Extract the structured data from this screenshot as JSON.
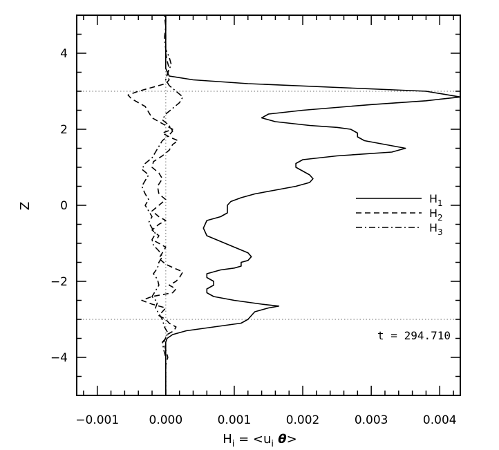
{
  "chart_data": {
    "type": "line",
    "xlabel_parts": {
      "base": "H",
      "sub": "i",
      "mid": " = <u",
      "sub2": "i",
      "theta": " θ",
      "end": ">"
    },
    "ylabel": "Z",
    "xlim": [
      -0.0013,
      0.0043
    ],
    "ylim": [
      -5,
      5
    ],
    "x_ticks": [
      -0.001,
      0.0,
      0.001,
      0.002,
      0.003,
      0.004
    ],
    "x_tick_labels": [
      "−0.001",
      "0.000",
      "0.001",
      "0.002",
      "0.003",
      "0.004"
    ],
    "y_ticks": [
      -4,
      -2,
      0,
      2,
      4
    ],
    "y_tick_labels": [
      "−4",
      "−2",
      "0",
      "2",
      "4"
    ],
    "reference_lines": {
      "z": [
        3,
        -3
      ],
      "x": [
        0
      ]
    },
    "annotation": "t = 294.710",
    "legend_position": "right",
    "series": [
      {
        "name": "H",
        "sub": "1",
        "style": "solid",
        "points": [
          [
            0.0,
            -5
          ],
          [
            0.0,
            -4.0
          ],
          [
            0.0,
            -3.6
          ],
          [
            2e-05,
            -3.5
          ],
          [
            0.0001,
            -3.4
          ],
          [
            0.0003,
            -3.3
          ],
          [
            0.0007,
            -3.2
          ],
          [
            0.0011,
            -3.1
          ],
          [
            0.0012,
            -3.0
          ],
          [
            0.00125,
            -2.9
          ],
          [
            0.0013,
            -2.8
          ],
          [
            0.0015,
            -2.7
          ],
          [
            0.00165,
            -2.65
          ],
          [
            0.0014,
            -2.6
          ],
          [
            0.001,
            -2.5
          ],
          [
            0.0007,
            -2.4
          ],
          [
            0.0006,
            -2.3
          ],
          [
            0.0006,
            -2.2
          ],
          [
            0.0007,
            -2.1
          ],
          [
            0.0007,
            -2.0
          ],
          [
            0.0006,
            -1.9
          ],
          [
            0.0006,
            -1.8
          ],
          [
            0.0008,
            -1.7
          ],
          [
            0.001,
            -1.65
          ],
          [
            0.0011,
            -1.6
          ],
          [
            0.0011,
            -1.5
          ],
          [
            0.0012,
            -1.45
          ],
          [
            0.00125,
            -1.35
          ],
          [
            0.0012,
            -1.25
          ],
          [
            0.001,
            -1.1
          ],
          [
            0.0008,
            -0.95
          ],
          [
            0.0006,
            -0.8
          ],
          [
            0.00055,
            -0.6
          ],
          [
            0.0006,
            -0.4
          ],
          [
            0.0008,
            -0.3
          ],
          [
            0.0009,
            -0.2
          ],
          [
            0.0009,
            0.0
          ],
          [
            0.00095,
            0.1
          ],
          [
            0.0011,
            0.2
          ],
          [
            0.0013,
            0.3
          ],
          [
            0.0016,
            0.4
          ],
          [
            0.0019,
            0.5
          ],
          [
            0.0021,
            0.6
          ],
          [
            0.00215,
            0.7
          ],
          [
            0.0021,
            0.8
          ],
          [
            0.002,
            0.9
          ],
          [
            0.0019,
            1.0
          ],
          [
            0.0019,
            1.1
          ],
          [
            0.002,
            1.2
          ],
          [
            0.0025,
            1.3
          ],
          [
            0.0033,
            1.4
          ],
          [
            0.0035,
            1.5
          ],
          [
            0.0032,
            1.6
          ],
          [
            0.0029,
            1.7
          ],
          [
            0.0028,
            1.8
          ],
          [
            0.0028,
            1.9
          ],
          [
            0.0027,
            2.0
          ],
          [
            0.0025,
            2.05
          ],
          [
            0.0021,
            2.1
          ],
          [
            0.0016,
            2.2
          ],
          [
            0.0014,
            2.3
          ],
          [
            0.0015,
            2.4
          ],
          [
            0.002,
            2.5
          ],
          [
            0.003,
            2.65
          ],
          [
            0.0038,
            2.75
          ],
          [
            0.0043,
            2.85
          ],
          [
            0.0038,
            3.0
          ],
          [
            0.0025,
            3.1
          ],
          [
            0.0012,
            3.2
          ],
          [
            0.0004,
            3.3
          ],
          [
            5e-05,
            3.4
          ],
          [
            0.0,
            3.6
          ],
          [
            0.0,
            4.0
          ],
          [
            0.0,
            5
          ]
        ]
      },
      {
        "name": "H",
        "sub": "2",
        "style": "dashed",
        "points": [
          [
            0.0,
            -5
          ],
          [
            0.0,
            -4.2
          ],
          [
            3e-05,
            -4.0
          ],
          [
            0.0,
            -3.8
          ],
          [
            -3e-05,
            -3.6
          ],
          [
            2e-05,
            -3.4
          ],
          [
            0.00012,
            -3.3
          ],
          [
            0.00015,
            -3.2
          ],
          [
            5e-05,
            -3.1
          ],
          [
            0.0,
            -3.0
          ],
          [
            -0.0001,
            -2.9
          ],
          [
            -5e-05,
            -2.8
          ],
          [
            0.0,
            -2.7
          ],
          [
            -0.0002,
            -2.6
          ],
          [
            -0.00035,
            -2.5
          ],
          [
            -0.0002,
            -2.4
          ],
          [
            0.0001,
            -2.3
          ],
          [
            0.00015,
            -2.2
          ],
          [
            5e-05,
            -2.1
          ],
          [
            0.00015,
            -2.0
          ],
          [
            0.0002,
            -1.9
          ],
          [
            0.00025,
            -1.75
          ],
          [
            0.00012,
            -1.65
          ],
          [
            0.0,
            -1.55
          ],
          [
            -0.0001,
            -1.4
          ],
          [
            -5e-05,
            -1.25
          ],
          [
            0.0,
            -1.1
          ],
          [
            -0.00015,
            -0.95
          ],
          [
            -0.0001,
            -0.8
          ],
          [
            -0.0002,
            -0.65
          ],
          [
            -0.0001,
            -0.5
          ],
          [
            0.0,
            -0.4
          ],
          [
            -0.0001,
            -0.3
          ],
          [
            -0.0002,
            -0.15
          ],
          [
            -0.0001,
            0.0
          ],
          [
            0.0,
            0.15
          ],
          [
            -0.0001,
            0.3
          ],
          [
            -0.00012,
            0.5
          ],
          [
            -5e-05,
            0.7
          ],
          [
            -0.0001,
            0.85
          ],
          [
            -0.0002,
            1.0
          ],
          [
            -0.00018,
            1.15
          ],
          [
            -5e-05,
            1.3
          ],
          [
            5e-05,
            1.45
          ],
          [
            0.0001,
            1.6
          ],
          [
            0.00018,
            1.7
          ],
          [
            5e-05,
            1.8
          ],
          [
            -5e-05,
            1.9
          ],
          [
            0.0001,
            2.0
          ],
          [
            0.0,
            2.1
          ],
          [
            -0.0001,
            2.2
          ],
          [
            -0.0002,
            2.3
          ],
          [
            -0.00025,
            2.45
          ],
          [
            -0.0003,
            2.6
          ],
          [
            -0.0005,
            2.8
          ],
          [
            -0.00055,
            2.9
          ],
          [
            -0.0004,
            3.0
          ],
          [
            -0.0002,
            3.1
          ],
          [
            0.0,
            3.2
          ],
          [
            5e-05,
            3.3
          ],
          [
            2e-05,
            3.4
          ],
          [
            5e-05,
            3.6
          ],
          [
            2e-05,
            3.8
          ],
          [
            0.0,
            4.0
          ],
          [
            0.0,
            5
          ]
        ]
      },
      {
        "name": "H",
        "sub": "3",
        "style": "dashdot",
        "points": [
          [
            0.0,
            -5
          ],
          [
            0.0,
            -4.0
          ],
          [
            -3e-05,
            -3.8
          ],
          [
            -5e-05,
            -3.6
          ],
          [
            0.0,
            -3.5
          ],
          [
            3e-05,
            -3.35
          ],
          [
            -2e-05,
            -3.2
          ],
          [
            -5e-05,
            -3.0
          ],
          [
            -0.0001,
            -2.85
          ],
          [
            -0.00015,
            -2.7
          ],
          [
            -0.00012,
            -2.55
          ],
          [
            -0.0002,
            -2.4
          ],
          [
            -0.00015,
            -2.25
          ],
          [
            -0.0001,
            -2.1
          ],
          [
            -0.00012,
            -1.95
          ],
          [
            -0.00018,
            -1.8
          ],
          [
            -0.00012,
            -1.65
          ],
          [
            -0.0001,
            -1.5
          ],
          [
            -5e-05,
            -1.35
          ],
          [
            -0.0001,
            -1.2
          ],
          [
            -0.00018,
            -1.05
          ],
          [
            -0.0002,
            -0.9
          ],
          [
            -0.00015,
            -0.75
          ],
          [
            -0.0002,
            -0.6
          ],
          [
            -0.00025,
            -0.45
          ],
          [
            -0.0002,
            -0.3
          ],
          [
            -0.00025,
            -0.15
          ],
          [
            -0.0003,
            0.0
          ],
          [
            -0.00025,
            0.15
          ],
          [
            -0.0003,
            0.3
          ],
          [
            -0.00035,
            0.5
          ],
          [
            -0.0003,
            0.65
          ],
          [
            -0.00025,
            0.8
          ],
          [
            -0.00035,
            0.95
          ],
          [
            -0.0003,
            1.1
          ],
          [
            -0.0002,
            1.25
          ],
          [
            -0.00015,
            1.4
          ],
          [
            -0.0001,
            1.55
          ],
          [
            -5e-05,
            1.7
          ],
          [
            5e-05,
            1.85
          ],
          [
            0.0001,
            1.95
          ],
          [
            5e-05,
            2.1
          ],
          [
            -5e-05,
            2.25
          ],
          [
            0.0,
            2.4
          ],
          [
            0.0001,
            2.55
          ],
          [
            0.0002,
            2.7
          ],
          [
            0.00025,
            2.85
          ],
          [
            0.00015,
            3.0
          ],
          [
            5e-05,
            3.15
          ],
          [
            0.0,
            3.3
          ],
          [
            3e-05,
            3.5
          ],
          [
            8e-05,
            3.7
          ],
          [
            5e-05,
            3.9
          ],
          [
            0.0,
            4.1
          ],
          [
            -2e-05,
            4.4
          ],
          [
            0.0,
            4.7
          ],
          [
            -2e-05,
            5
          ]
        ]
      }
    ]
  }
}
